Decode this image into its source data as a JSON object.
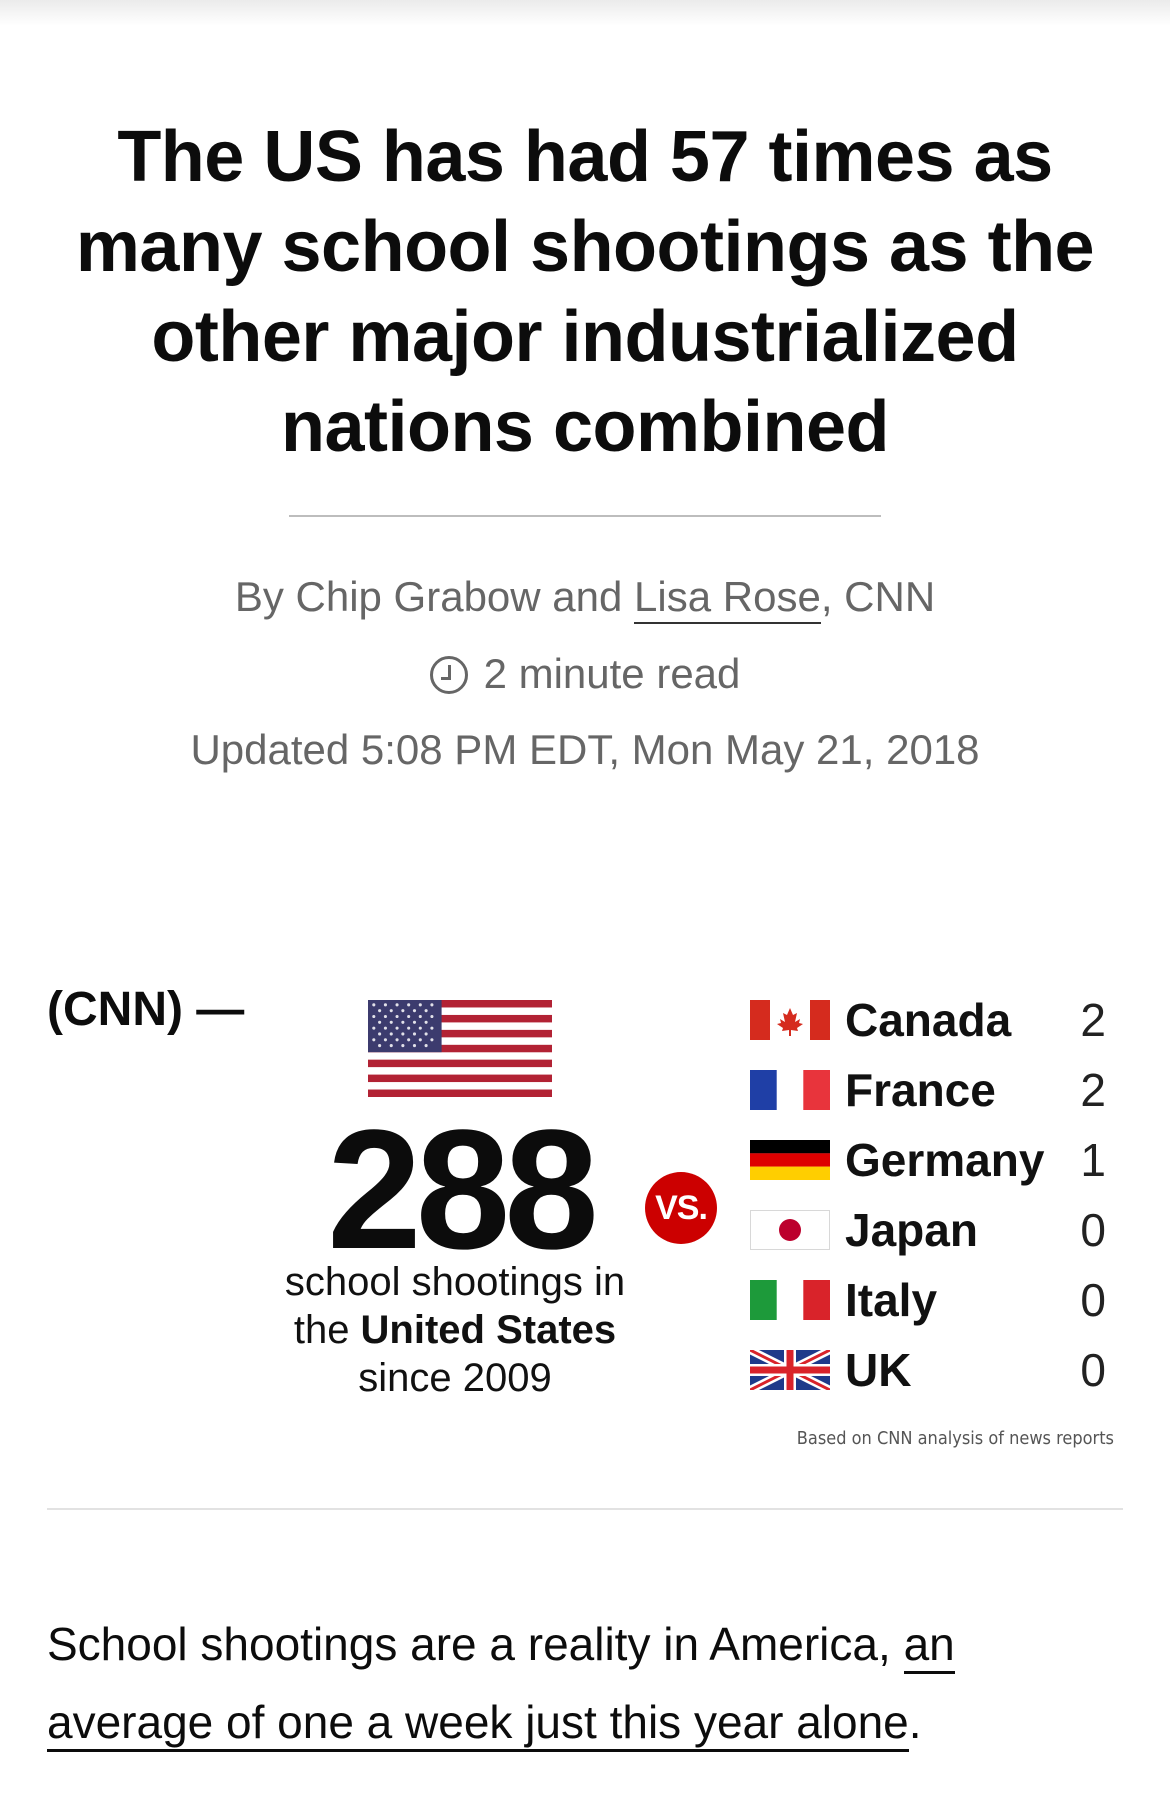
{
  "article": {
    "headline": "The US has had 57 times as many school shootings as the other major industrialized nations combined",
    "byline": {
      "prefix": "By Chip Grabow and ",
      "author_link": "Lisa Rose",
      "suffix": ", CNN"
    },
    "read_time": "2 minute read",
    "updated": "Updated 5:08 PM EDT, Mon May 21, 2018",
    "dateline": "(CNN) —",
    "body": {
      "text": "School shootings are a reality in America, ",
      "link": "an average of one a week just this year alone",
      "end": "."
    }
  },
  "infographic": {
    "us_count": "288",
    "us_caption_1": "school shootings in",
    "us_caption_2_prefix": "the ",
    "us_caption_2_bold": "United States",
    "us_caption_3": "since 2009",
    "vs_label": "VS.",
    "source_note": "Based on CNN analysis of news reports",
    "countries": [
      {
        "name": "Canada",
        "count": "2",
        "flag": "canada-flag"
      },
      {
        "name": "France",
        "count": "2",
        "flag": "france-flag"
      },
      {
        "name": "Germany",
        "count": "1",
        "flag": "germany-flag"
      },
      {
        "name": "Japan",
        "count": "0",
        "flag": "japan-flag"
      },
      {
        "name": "Italy",
        "count": "0",
        "flag": "italy-flag"
      },
      {
        "name": "UK",
        "count": "0",
        "flag": "uk-flag"
      }
    ],
    "colors": {
      "us_red": "#b22234",
      "us_blue": "#3c3b6e",
      "vs_red": "#cc0000"
    }
  }
}
